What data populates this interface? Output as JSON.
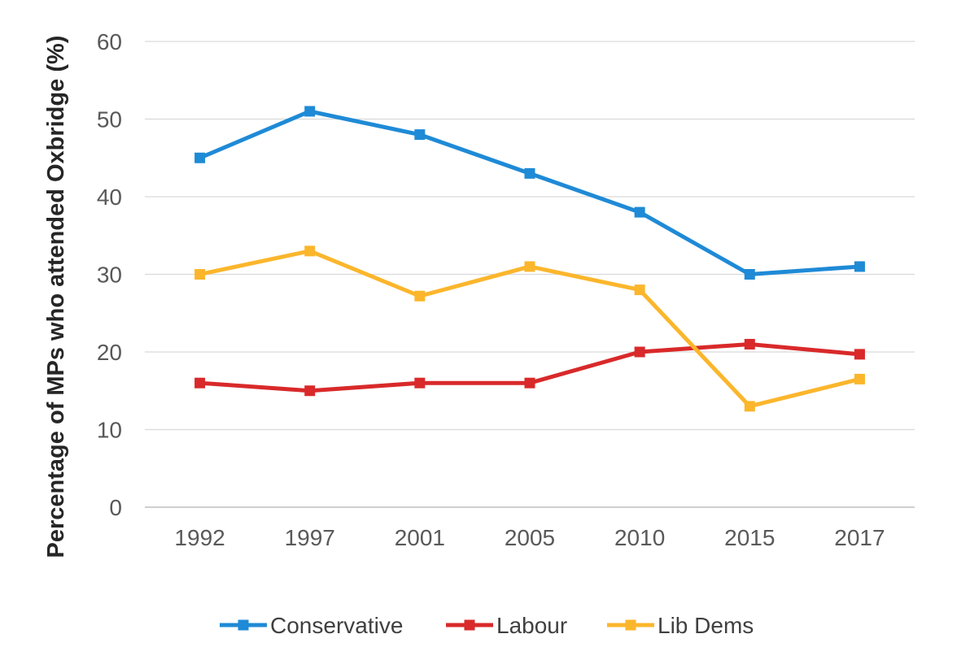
{
  "chart_data": {
    "type": "line",
    "title": "",
    "xlabel": "",
    "ylabel": "Percentage of MPs who attended Oxbridge (%)",
    "categories": [
      "1992",
      "1997",
      "2001",
      "2005",
      "2010",
      "2015",
      "2017"
    ],
    "ylim": [
      0,
      60
    ],
    "yticks": [
      "0",
      "10",
      "20",
      "30",
      "40",
      "50",
      "60"
    ],
    "grid": true,
    "legend": "bottom",
    "series": [
      {
        "name": "Conservative",
        "color": "#1f8ad6",
        "marker": "square",
        "values": [
          45,
          51,
          48,
          43,
          38,
          30,
          31
        ]
      },
      {
        "name": "Labour",
        "color": "#d9292a",
        "marker": "square",
        "values": [
          16,
          15,
          16,
          16,
          20,
          21,
          19.7
        ]
      },
      {
        "name": "Lib Dems",
        "color": "#fbb62c",
        "marker": "square",
        "values": [
          30,
          33,
          27.2,
          31,
          28,
          13,
          16.5
        ]
      }
    ]
  }
}
